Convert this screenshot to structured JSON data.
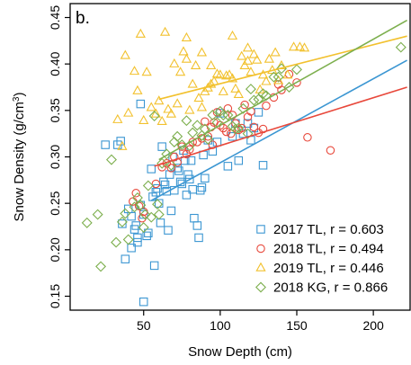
{
  "chart_data": {
    "type": "scatter",
    "panel_label": "b.",
    "xlabel": "Snow Depth (cm)",
    "ylabel": "Snow Density (g/cm",
    "ylabel_superscript": "3",
    "ylabel_close": ")",
    "xlim": [
      2,
      224
    ],
    "ylim": [
      0.135,
      0.465
    ],
    "x_ticks": [
      {
        "value": 50,
        "label": "50"
      },
      {
        "value": 100,
        "label": "100"
      },
      {
        "value": 150,
        "label": "150"
      },
      {
        "value": 200,
        "label": "200"
      }
    ],
    "y_ticks": [
      {
        "value": 0.15,
        "label": "0.15"
      },
      {
        "value": 0.2,
        "label": "0.20"
      },
      {
        "value": 0.25,
        "label": "0.25"
      },
      {
        "value": 0.3,
        "label": "0.30"
      },
      {
        "value": 0.35,
        "label": "0.35"
      },
      {
        "value": 0.4,
        "label": "0.40"
      },
      {
        "value": 0.45,
        "label": "0.45"
      }
    ],
    "grid": false,
    "legend_position": "bottom-right",
    "series": [
      {
        "name": "2017 TL, r = 0.603",
        "marker": "square",
        "color": "#3b96d2",
        "fit_x": [
          55,
          222
        ],
        "fit_y": [
          0.253,
          0.404
        ],
        "points": [
          [
            25,
            0.313
          ],
          [
            33,
            0.313
          ],
          [
            35,
            0.317
          ],
          [
            36,
            0.228
          ],
          [
            40,
            0.244
          ],
          [
            42,
            0.236
          ],
          [
            44,
            0.222
          ],
          [
            45,
            0.226
          ],
          [
            46,
            0.213
          ],
          [
            48,
            0.248
          ],
          [
            50,
            0.238
          ],
          [
            52,
            0.215
          ],
          [
            53,
            0.218
          ],
          [
            55,
            0.287
          ],
          [
            56,
            0.257
          ],
          [
            57,
            0.183
          ],
          [
            58,
            0.262
          ],
          [
            59,
            0.266
          ],
          [
            60,
            0.25
          ],
          [
            61,
            0.229
          ],
          [
            62,
            0.311
          ],
          [
            63,
            0.273
          ],
          [
            64,
            0.27
          ],
          [
            65,
            0.263
          ],
          [
            66,
            0.221
          ],
          [
            67,
            0.281
          ],
          [
            68,
            0.242
          ],
          [
            69,
            0.3
          ],
          [
            70,
            0.264
          ],
          [
            72,
            0.288
          ],
          [
            73,
            0.285
          ],
          [
            74,
            0.273
          ],
          [
            75,
            0.271
          ],
          [
            76,
            0.307
          ],
          [
            77,
            0.296
          ],
          [
            78,
            0.259
          ],
          [
            79,
            0.281
          ],
          [
            80,
            0.276
          ],
          [
            81,
            0.296
          ],
          [
            82,
            0.265
          ],
          [
            83,
            0.234
          ],
          [
            85,
            0.226
          ],
          [
            86,
            0.213
          ],
          [
            87,
            0.264
          ],
          [
            88,
            0.267
          ],
          [
            89,
            0.302
          ],
          [
            90,
            0.277
          ],
          [
            92,
            0.318
          ],
          [
            95,
            0.306
          ],
          [
            98,
            0.316
          ],
          [
            100,
            0.347
          ],
          [
            105,
            0.29
          ],
          [
            108,
            0.322
          ],
          [
            110,
            0.336
          ],
          [
            112,
            0.296
          ],
          [
            115,
            0.325
          ],
          [
            118,
            0.336
          ],
          [
            120,
            0.318
          ],
          [
            122,
            0.331
          ],
          [
            125,
            0.348
          ],
          [
            128,
            0.291
          ],
          [
            48,
            0.357
          ],
          [
            50,
            0.144
          ],
          [
            38,
            0.19
          ],
          [
            42,
            0.202
          ],
          [
            46,
            0.208
          ]
        ]
      },
      {
        "name": "2018 TL, r = 0.494",
        "marker": "circle",
        "color": "#e8483b",
        "fit_x": [
          57,
          222
        ],
        "fit_y": [
          0.29,
          0.375
        ],
        "points": [
          [
            43,
            0.252
          ],
          [
            45,
            0.261
          ],
          [
            47,
            0.247
          ],
          [
            49,
            0.234
          ],
          [
            50,
            0.241
          ],
          [
            58,
            0.271
          ],
          [
            62,
            0.289
          ],
          [
            65,
            0.293
          ],
          [
            68,
            0.288
          ],
          [
            70,
            0.3
          ],
          [
            72,
            0.294
          ],
          [
            75,
            0.311
          ],
          [
            78,
            0.303
          ],
          [
            80,
            0.308
          ],
          [
            82,
            0.316
          ],
          [
            85,
            0.316
          ],
          [
            88,
            0.32
          ],
          [
            90,
            0.338
          ],
          [
            92,
            0.322
          ],
          [
            94,
            0.332
          ],
          [
            95,
            0.313
          ],
          [
            96,
            0.337
          ],
          [
            98,
            0.348
          ],
          [
            100,
            0.334
          ],
          [
            102,
            0.331
          ],
          [
            104,
            0.327
          ],
          [
            105,
            0.352
          ],
          [
            107,
            0.325
          ],
          [
            108,
            0.345
          ],
          [
            110,
            0.336
          ],
          [
            112,
            0.329
          ],
          [
            114,
            0.331
          ],
          [
            116,
            0.356
          ],
          [
            118,
            0.343
          ],
          [
            120,
            0.349
          ],
          [
            122,
            0.332
          ],
          [
            125,
            0.326
          ],
          [
            128,
            0.33
          ],
          [
            130,
            0.355
          ],
          [
            135,
            0.364
          ],
          [
            138,
            0.378
          ],
          [
            140,
            0.372
          ],
          [
            145,
            0.389
          ],
          [
            150,
            0.38
          ],
          [
            157,
            0.321
          ],
          [
            172,
            0.307
          ]
        ]
      },
      {
        "name": "2019 TL, r = 0.446",
        "marker": "triangle",
        "color": "#f2c12e",
        "fit_x": [
          60,
          222
        ],
        "fit_y": [
          0.362,
          0.43
        ],
        "points": [
          [
            33,
            0.34
          ],
          [
            36,
            0.311
          ],
          [
            38,
            0.409
          ],
          [
            40,
            0.347
          ],
          [
            44,
            0.392
          ],
          [
            46,
            0.371
          ],
          [
            48,
            0.432
          ],
          [
            50,
            0.339
          ],
          [
            52,
            0.391
          ],
          [
            55,
            0.353
          ],
          [
            58,
            0.346
          ],
          [
            60,
            0.36
          ],
          [
            62,
            0.338
          ],
          [
            64,
            0.434
          ],
          [
            66,
            0.351
          ],
          [
            68,
            0.346
          ],
          [
            70,
            0.4
          ],
          [
            72,
            0.357
          ],
          [
            74,
            0.391
          ],
          [
            76,
            0.413
          ],
          [
            78,
            0.405
          ],
          [
            80,
            0.35
          ],
          [
            82,
            0.378
          ],
          [
            84,
            0.398
          ],
          [
            86,
            0.363
          ],
          [
            88,
            0.353
          ],
          [
            90,
            0.37
          ],
          [
            92,
            0.374
          ],
          [
            94,
            0.378
          ],
          [
            96,
            0.381
          ],
          [
            98,
            0.389
          ],
          [
            100,
            0.388
          ],
          [
            102,
            0.37
          ],
          [
            104,
            0.387
          ],
          [
            106,
            0.388
          ],
          [
            108,
            0.384
          ],
          [
            110,
            0.373
          ],
          [
            112,
            0.367
          ],
          [
            114,
            0.408
          ],
          [
            116,
            0.398
          ],
          [
            118,
            0.403
          ],
          [
            120,
            0.391
          ],
          [
            122,
            0.41
          ],
          [
            124,
            0.404
          ],
          [
            126,
            0.372
          ],
          [
            128,
            0.388
          ],
          [
            130,
            0.381
          ],
          [
            132,
            0.405
          ],
          [
            134,
            0.393
          ],
          [
            136,
            0.412
          ],
          [
            138,
            0.382
          ],
          [
            140,
            0.398
          ],
          [
            144,
            0.388
          ],
          [
            148,
            0.418
          ],
          [
            152,
            0.418
          ],
          [
            155,
            0.417
          ],
          [
            88,
            0.412
          ],
          [
            94,
            0.398
          ],
          [
            78,
            0.428
          ],
          [
            108,
            0.43
          ],
          [
            118,
            0.417
          ]
        ]
      },
      {
        "name": "2018 KG, r = 0.866",
        "marker": "diamond",
        "color": "#7daf4e",
        "fit_x": [
          60,
          222
        ],
        "fit_y": [
          0.297,
          0.447
        ],
        "points": [
          [
            13,
            0.229
          ],
          [
            20,
            0.238
          ],
          [
            22,
            0.182
          ],
          [
            29,
            0.297
          ],
          [
            32,
            0.208
          ],
          [
            36,
            0.23
          ],
          [
            38,
            0.239
          ],
          [
            40,
            0.211
          ],
          [
            44,
            0.246
          ],
          [
            46,
            0.256
          ],
          [
            48,
            0.248
          ],
          [
            50,
            0.224
          ],
          [
            51,
            0.238
          ],
          [
            53,
            0.269
          ],
          [
            55,
            0.235
          ],
          [
            57,
            0.344
          ],
          [
            59,
            0.249
          ],
          [
            60,
            0.238
          ],
          [
            62,
            0.293
          ],
          [
            65,
            0.303
          ],
          [
            68,
            0.291
          ],
          [
            70,
            0.316
          ],
          [
            72,
            0.322
          ],
          [
            75,
            0.313
          ],
          [
            78,
            0.339
          ],
          [
            80,
            0.312
          ],
          [
            82,
            0.326
          ],
          [
            85,
            0.334
          ],
          [
            88,
            0.323
          ],
          [
            90,
            0.33
          ],
          [
            92,
            0.319
          ],
          [
            95,
            0.345
          ],
          [
            98,
            0.337
          ],
          [
            100,
            0.349
          ],
          [
            102,
            0.345
          ],
          [
            105,
            0.345
          ],
          [
            108,
            0.333
          ],
          [
            110,
            0.33
          ],
          [
            112,
            0.331
          ],
          [
            115,
            0.352
          ],
          [
            118,
            0.325
          ],
          [
            120,
            0.373
          ],
          [
            122,
            0.361
          ],
          [
            125,
            0.362
          ],
          [
            128,
            0.368
          ],
          [
            130,
            0.366
          ],
          [
            135,
            0.386
          ],
          [
            138,
            0.386
          ],
          [
            140,
            0.395
          ],
          [
            145,
            0.375
          ],
          [
            150,
            0.394
          ],
          [
            218,
            0.418
          ]
        ]
      }
    ]
  }
}
